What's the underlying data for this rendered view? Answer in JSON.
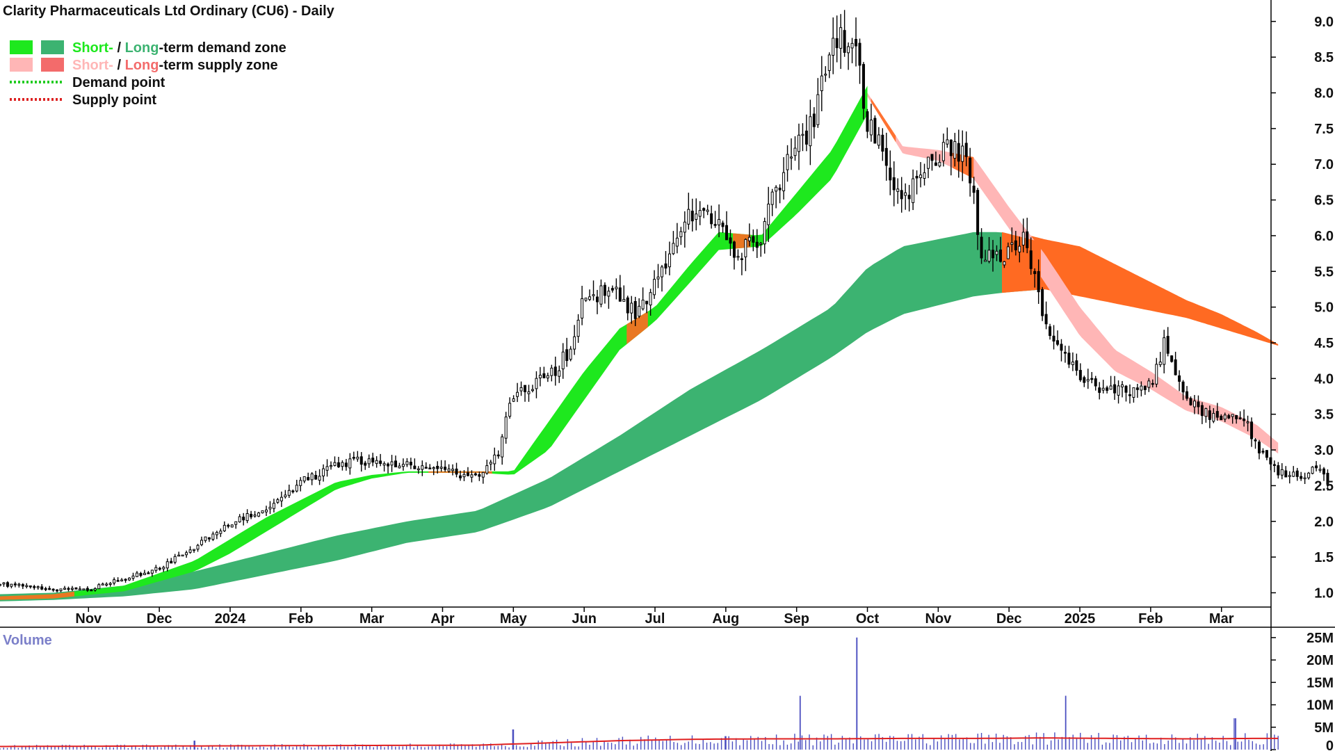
{
  "chart_data": {
    "type": "candlestick",
    "title": "Clarity Pharmaceuticals Ltd Ordinary (CU6) - Daily",
    "legend": {
      "placement": "top-left",
      "items": [
        {
          "kind": "zone",
          "colors": [
            "#1ee81e",
            "#3cb371"
          ],
          "parts": [
            {
              "text": "Short-",
              "color": "#1ee81e"
            },
            {
              "text": " / ",
              "color": "#111111"
            },
            {
              "text": "Long",
              "color": "#3cb371"
            },
            {
              "text": "-term demand zone",
              "color": "#111111"
            }
          ]
        },
        {
          "kind": "zone",
          "colors": [
            "#ffb6b6",
            "#f36b6b"
          ],
          "parts": [
            {
              "text": "Short-",
              "color": "#ffb6b6"
            },
            {
              "text": " / ",
              "color": "#111111"
            },
            {
              "text": "Long",
              "color": "#f36b6b"
            },
            {
              "text": "-term supply zone",
              "color": "#111111"
            }
          ]
        },
        {
          "kind": "dotted",
          "color": "#22cc22",
          "parts": [
            {
              "text": "Demand point",
              "color": "#111111"
            }
          ]
        },
        {
          "kind": "dotted",
          "color": "#dd2222",
          "parts": [
            {
              "text": "Supply point",
              "color": "#111111"
            }
          ]
        }
      ]
    },
    "price_axis": {
      "ticks": [
        "1.0",
        "1.5",
        "2.0",
        "2.5",
        "3.0",
        "3.5",
        "4.0",
        "4.5",
        "5.0",
        "5.5",
        "6.0",
        "6.5",
        "7.0",
        "7.5",
        "8.0",
        "8.5",
        "9.0"
      ],
      "range": [
        0.8,
        9.3
      ]
    },
    "time_axis": {
      "labels": [
        "Nov",
        "Dec",
        "2024",
        "Feb",
        "Mar",
        "Apr",
        "May",
        "Jun",
        "Jul",
        "Aug",
        "Sep",
        "Oct",
        "Nov",
        "Dec",
        "2025",
        "Feb",
        "Mar"
      ],
      "positions": [
        0.5,
        1.5,
        2.5,
        3.5,
        4.5,
        5.5,
        6.5,
        7.5,
        8.5,
        9.5,
        10.5,
        11.5,
        12.5,
        13.5,
        14.5,
        15.5,
        16.5
      ],
      "range": [
        -0.75,
        17.2
      ]
    },
    "price_path": [
      [
        -0.75,
        1.12
      ],
      [
        0,
        1.05
      ],
      [
        0.5,
        1.05
      ],
      [
        1,
        1.2
      ],
      [
        1.5,
        1.35
      ],
      [
        2,
        1.65
      ],
      [
        2.5,
        1.95
      ],
      [
        3,
        2.2
      ],
      [
        3.5,
        2.55
      ],
      [
        4,
        2.8
      ],
      [
        4.5,
        2.85
      ],
      [
        5,
        2.8
      ],
      [
        5.5,
        2.7
      ],
      [
        6,
        2.6
      ],
      [
        6.3,
        3.0
      ],
      [
        6.5,
        3.8
      ],
      [
        7,
        4.0
      ],
      [
        7.3,
        4.4
      ],
      [
        7.5,
        5.2
      ],
      [
        8,
        5.2
      ],
      [
        8.2,
        4.9
      ],
      [
        8.5,
        5.3
      ],
      [
        9,
        6.3
      ],
      [
        9.4,
        6.2
      ],
      [
        9.6,
        5.7
      ],
      [
        10,
        6.0
      ],
      [
        10.3,
        6.9
      ],
      [
        10.7,
        7.5
      ],
      [
        11,
        8.7
      ],
      [
        11.3,
        8.8
      ],
      [
        11.5,
        7.6
      ],
      [
        12,
        6.5
      ],
      [
        12.5,
        7.2
      ],
      [
        12.9,
        7.2
      ],
      [
        13.1,
        5.8
      ],
      [
        13.4,
        5.6
      ],
      [
        13.7,
        6.0
      ],
      [
        14,
        4.8
      ],
      [
        14.5,
        4.0
      ],
      [
        15,
        3.8
      ],
      [
        15.5,
        3.9
      ],
      [
        15.7,
        4.5
      ],
      [
        16,
        3.7
      ],
      [
        16.5,
        3.4
      ],
      [
        16.8,
        3.5
      ],
      [
        17,
        3.0
      ],
      [
        17.3,
        2.7
      ],
      [
        17.6,
        2.6
      ],
      [
        17.9,
        2.8
      ],
      [
        18,
        2.55
      ]
    ],
    "candles": {
      "count": 350,
      "seed": 20241
    }
  },
  "zones": {
    "short_demand": {
      "color": "#1ee81e",
      "upper": [
        [
          -0.75,
          0.95
        ],
        [
          0,
          0.98
        ],
        [
          1,
          1.1
        ],
        [
          2,
          1.45
        ],
        [
          2.5,
          1.75
        ],
        [
          3,
          2.05
        ],
        [
          3.5,
          2.3
        ],
        [
          4,
          2.55
        ],
        [
          4.5,
          2.65
        ],
        [
          5,
          2.7
        ],
        [
          6,
          2.7
        ],
        [
          6.5,
          2.7
        ],
        [
          7,
          3.4
        ],
        [
          7.5,
          4.1
        ],
        [
          8,
          4.7
        ],
        [
          8.5,
          5.0
        ],
        [
          9,
          5.6
        ],
        [
          9.4,
          6.05
        ],
        [
          10,
          6.0
        ],
        [
          10.5,
          6.6
        ],
        [
          11,
          7.2
        ],
        [
          11.5,
          8.1
        ]
      ],
      "lower": [
        [
          -0.75,
          0.9
        ],
        [
          0,
          0.92
        ],
        [
          1,
          1.02
        ],
        [
          2,
          1.3
        ],
        [
          2.5,
          1.55
        ],
        [
          3,
          1.85
        ],
        [
          3.5,
          2.15
        ],
        [
          4,
          2.45
        ],
        [
          4.5,
          2.6
        ],
        [
          5,
          2.68
        ],
        [
          6,
          2.68
        ],
        [
          6.5,
          2.65
        ],
        [
          7,
          3.0
        ],
        [
          7.5,
          3.7
        ],
        [
          8,
          4.4
        ],
        [
          8.5,
          4.8
        ],
        [
          9,
          5.35
        ],
        [
          9.4,
          5.8
        ],
        [
          10,
          5.85
        ],
        [
          10.5,
          6.3
        ],
        [
          11,
          6.8
        ],
        [
          11.5,
          7.7
        ]
      ]
    },
    "long_demand": {
      "color": "#3cb371",
      "upper": [
        [
          -0.75,
          0.98
        ],
        [
          0,
          1.0
        ],
        [
          1,
          1.1
        ],
        [
          2,
          1.3
        ],
        [
          3,
          1.55
        ],
        [
          4,
          1.8
        ],
        [
          5,
          2.0
        ],
        [
          6,
          2.15
        ],
        [
          7,
          2.6
        ],
        [
          8,
          3.2
        ],
        [
          9,
          3.85
        ],
        [
          10,
          4.4
        ],
        [
          11,
          5.0
        ],
        [
          11.5,
          5.55
        ],
        [
          12,
          5.85
        ],
        [
          13,
          6.05
        ],
        [
          13.4,
          6.05
        ],
        [
          14,
          5.9
        ],
        [
          14.4,
          5.6
        ]
      ],
      "lower": [
        [
          -0.75,
          0.88
        ],
        [
          0,
          0.9
        ],
        [
          1,
          0.95
        ],
        [
          2,
          1.05
        ],
        [
          3,
          1.25
        ],
        [
          4,
          1.45
        ],
        [
          5,
          1.7
        ],
        [
          6,
          1.85
        ],
        [
          7,
          2.2
        ],
        [
          8,
          2.7
        ],
        [
          9,
          3.2
        ],
        [
          10,
          3.7
        ],
        [
          11,
          4.3
        ],
        [
          11.5,
          4.65
        ],
        [
          12,
          4.9
        ],
        [
          13,
          5.15
        ],
        [
          13.4,
          5.2
        ],
        [
          14,
          5.25
        ],
        [
          14.4,
          5.25
        ]
      ]
    },
    "short_supply": {
      "color": "#ffb6b6",
      "upper": [
        [
          11.5,
          8.0
        ],
        [
          12,
          7.25
        ],
        [
          12.5,
          7.2
        ],
        [
          13,
          7.1
        ],
        [
          13.5,
          6.4
        ],
        [
          14,
          5.75
        ],
        [
          14.5,
          5.0
        ],
        [
          15,
          4.4
        ],
        [
          15.5,
          4.1
        ],
        [
          16,
          3.75
        ],
        [
          16.5,
          3.6
        ],
        [
          17,
          3.35
        ],
        [
          17.3,
          3.1
        ]
      ],
      "lower": [
        [
          11.5,
          7.95
        ],
        [
          12,
          7.15
        ],
        [
          12.5,
          7.05
        ],
        [
          13,
          6.8
        ],
        [
          13.5,
          6.1
        ],
        [
          14,
          5.35
        ],
        [
          14.5,
          4.6
        ],
        [
          15,
          4.1
        ],
        [
          15.5,
          3.85
        ],
        [
          16,
          3.55
        ],
        [
          16.5,
          3.4
        ],
        [
          17,
          3.15
        ],
        [
          17.3,
          2.95
        ]
      ]
    },
    "long_supply": {
      "color": "#ff6a22",
      "upper": [
        [
          13.6,
          6.05
        ],
        [
          14,
          5.95
        ],
        [
          14.5,
          5.85
        ],
        [
          15,
          5.6
        ],
        [
          15.5,
          5.35
        ],
        [
          16,
          5.1
        ],
        [
          16.5,
          4.9
        ],
        [
          17,
          4.65
        ],
        [
          17.3,
          4.48
        ]
      ],
      "lower": [
        [
          13.6,
          5.25
        ],
        [
          14,
          5.25
        ],
        [
          14.5,
          5.15
        ],
        [
          15,
          5.05
        ],
        [
          15.5,
          4.95
        ],
        [
          16,
          4.85
        ],
        [
          16.5,
          4.7
        ],
        [
          17,
          4.55
        ],
        [
          17.3,
          4.46
        ]
      ]
    }
  },
  "volume": {
    "label": "Volume",
    "ticks": [
      "0",
      "5M",
      "10M",
      "15M",
      "20M",
      "25M"
    ],
    "range": [
      0,
      27
    ],
    "spikes": [
      [
        10.55,
        12
      ],
      [
        11.35,
        25
      ],
      [
        14.3,
        12
      ],
      [
        16.7,
        7
      ],
      [
        6.5,
        4.5
      ],
      [
        2.0,
        2
      ],
      [
        9.5,
        3
      ]
    ],
    "average": [
      [
        -0.75,
        0.7
      ],
      [
        6,
        1
      ],
      [
        7,
        1.5
      ],
      [
        8,
        2
      ],
      [
        9,
        2.3
      ],
      [
        10,
        2.4
      ],
      [
        11,
        2.4
      ],
      [
        12,
        2.5
      ],
      [
        13,
        2.5
      ],
      [
        14,
        2.6
      ],
      [
        15,
        2.5
      ],
      [
        16,
        2.4
      ],
      [
        17,
        2.5
      ],
      [
        17.3,
        2.5
      ]
    ],
    "bar_color": "#4b4fc0",
    "avg_color": "#e02020"
  }
}
